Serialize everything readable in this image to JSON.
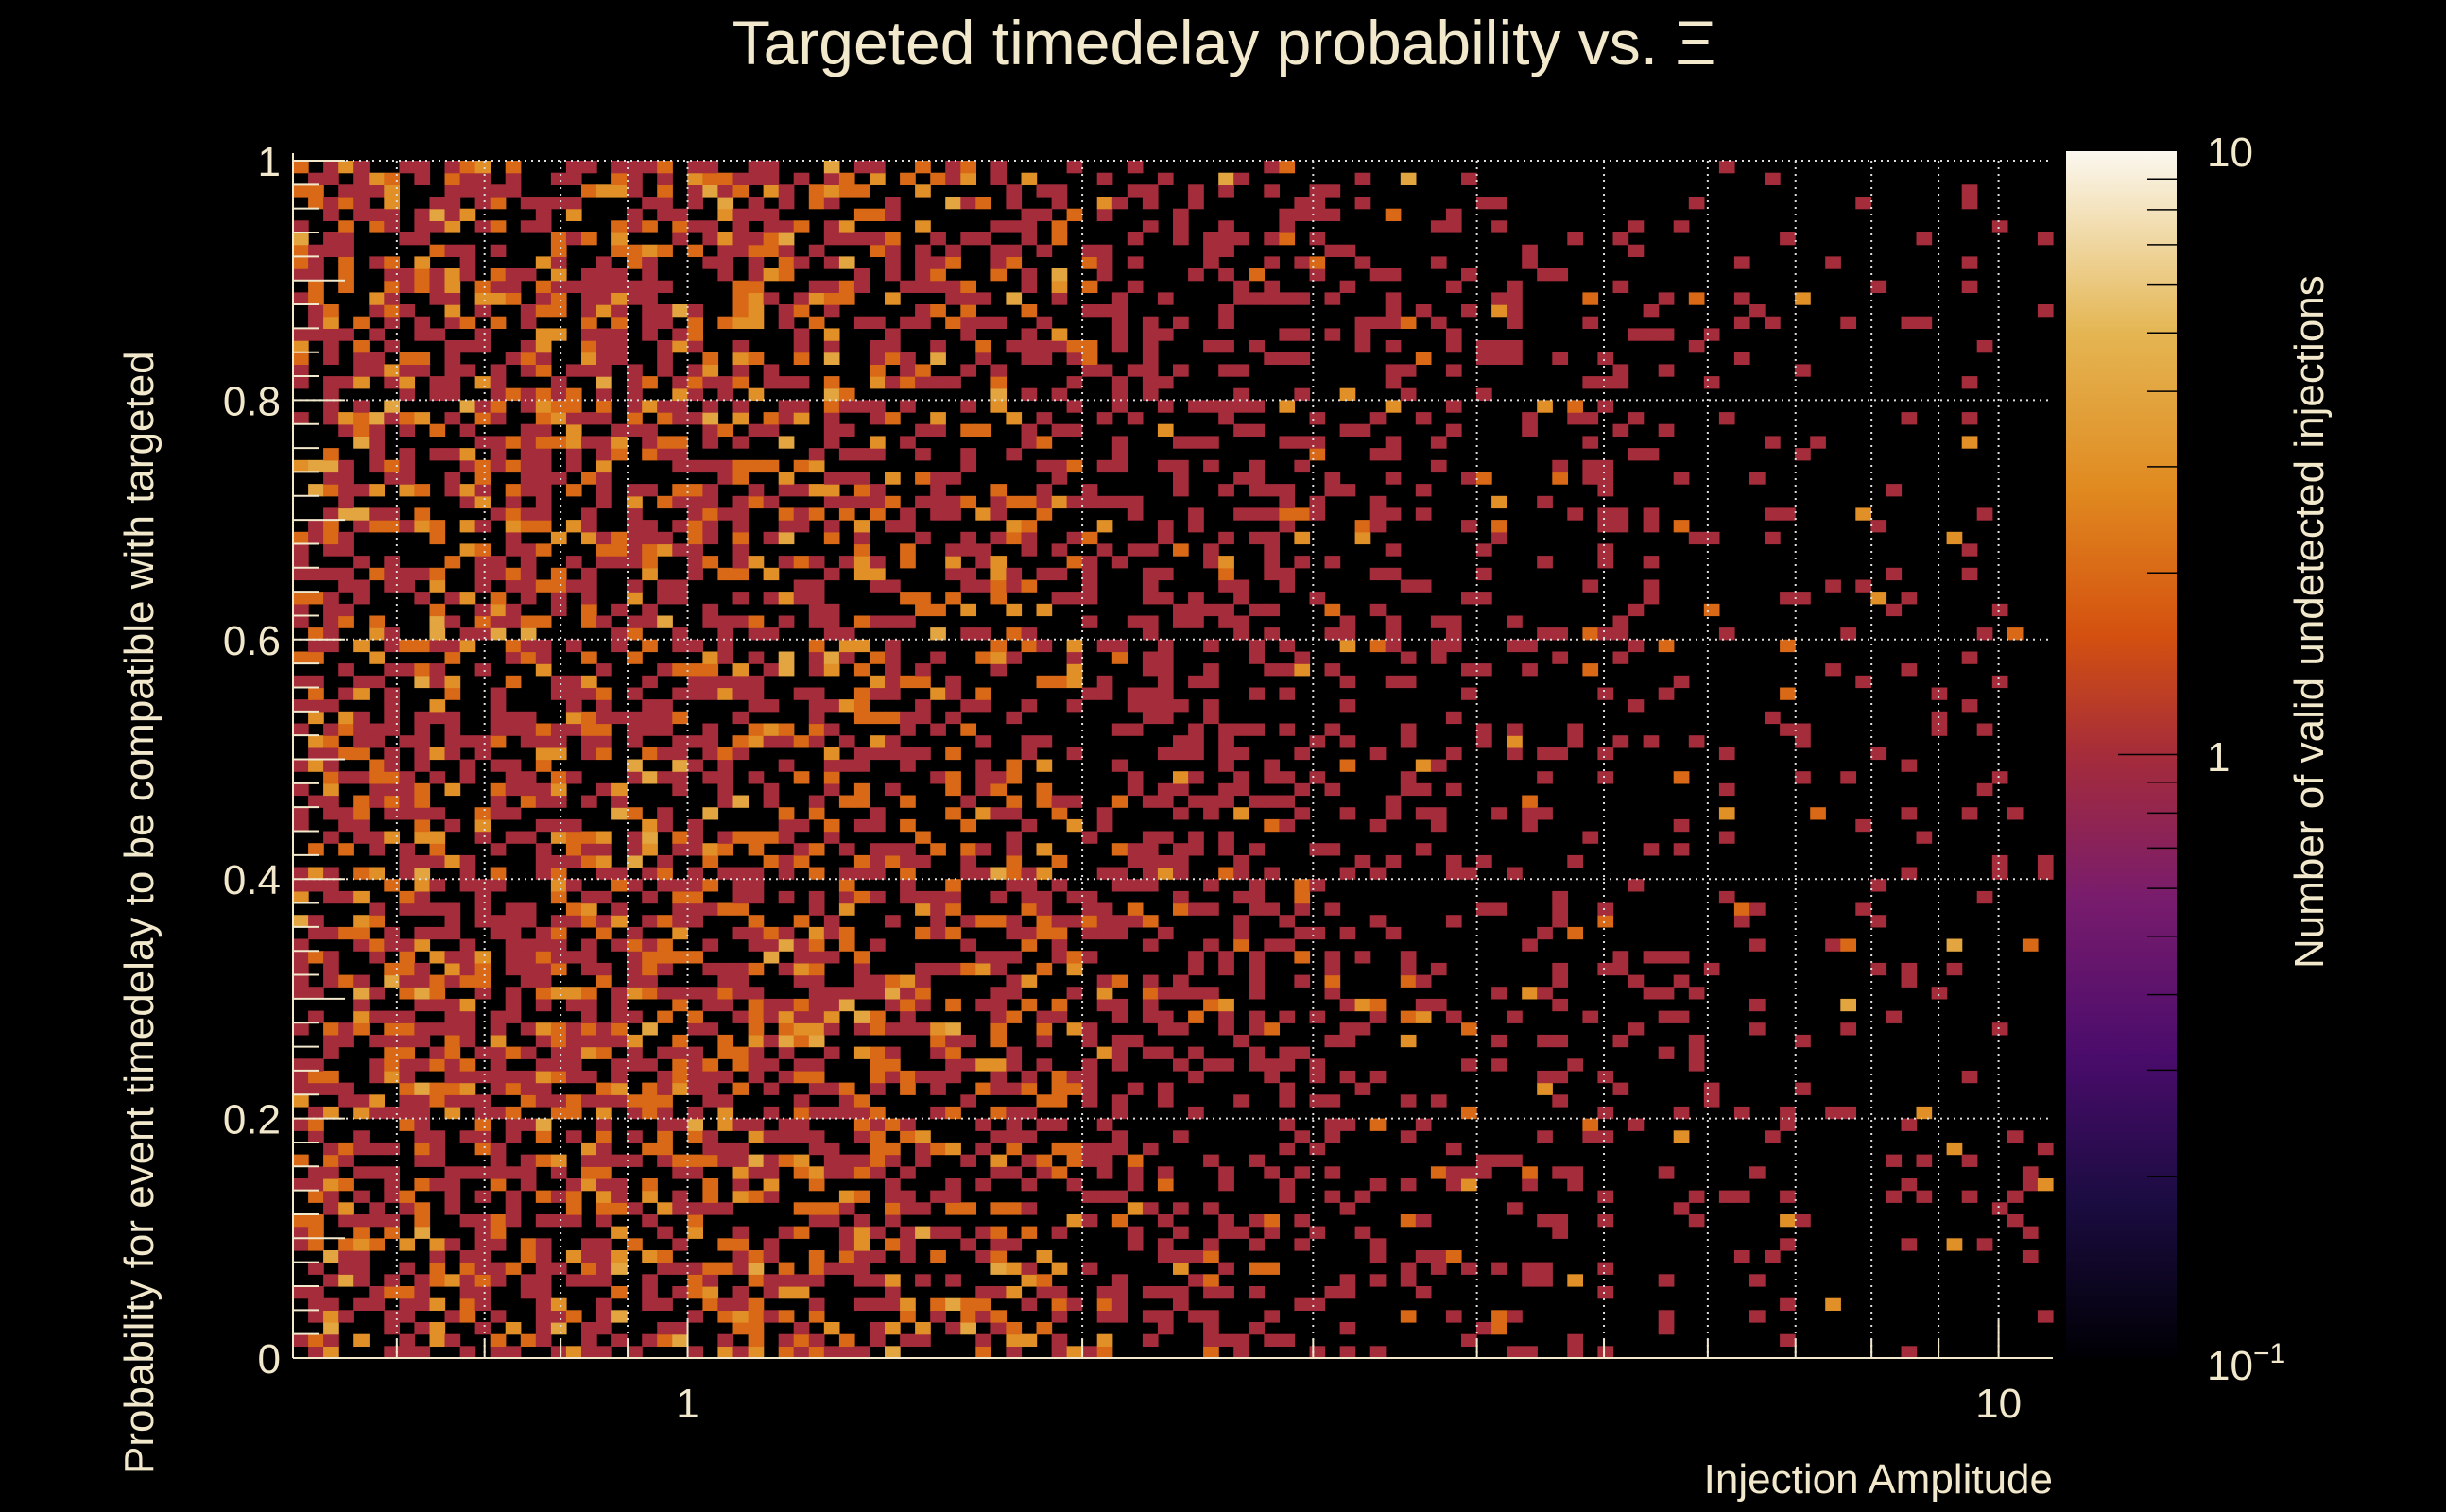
{
  "chart_data": {
    "type": "heatmap",
    "title": "Targeted timedelay probability vs.  Ξ",
    "xlabel": "Injection Amplitude",
    "ylabel": "Probability for event timedelay to be compatible with targeted",
    "colorbar_label": "Number of valid undetected injections",
    "xscale": "log",
    "xlim": [
      0.5,
      11
    ],
    "ylim": [
      0,
      1
    ],
    "x_bins": 116,
    "y_bins": 100,
    "x_tick_labels": [
      {
        "value": 1,
        "label": "1"
      },
      {
        "value": 10,
        "label": "10"
      }
    ],
    "y_tick_labels": [
      {
        "value": 0,
        "label": "0"
      },
      {
        "value": 0.2,
        "label": "0.2"
      },
      {
        "value": 0.4,
        "label": "0.4"
      },
      {
        "value": 0.6,
        "label": "0.6"
      },
      {
        "value": 0.8,
        "label": "0.8"
      },
      {
        "value": 1,
        "label": "1"
      }
    ],
    "zscale": "log",
    "zlim": [
      0.1,
      10
    ],
    "z_tick_labels": {
      "top": "10",
      "mid": "1",
      "bottom_base": "10",
      "bottom_exp": "−1"
    },
    "grid": true,
    "max_count": 4,
    "occupancy_vs_x": [
      {
        "x": 0.5,
        "fraction": 0.58
      },
      {
        "x": 1.0,
        "fraction": 0.55
      },
      {
        "x": 2.0,
        "fraction": 0.38
      },
      {
        "x": 3.0,
        "fraction": 0.26
      },
      {
        "x": 4.0,
        "fraction": 0.17
      },
      {
        "x": 6.0,
        "fraction": 0.1
      },
      {
        "x": 11.0,
        "fraction": 0.07
      }
    ],
    "seed": 12345
  }
}
